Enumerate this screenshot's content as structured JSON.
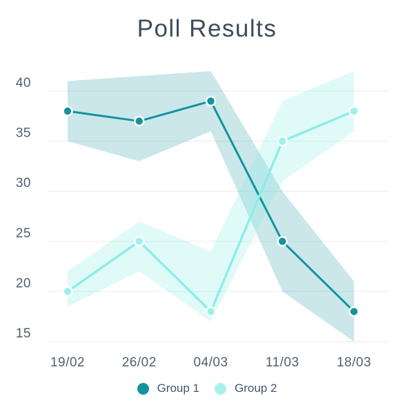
{
  "title": "Poll Results",
  "chart_data": {
    "type": "line",
    "title": "Poll Results",
    "categories": [
      "19/02",
      "26/02",
      "04/03",
      "11/03",
      "18/03"
    ],
    "series": [
      {
        "name": "Group 1",
        "values": [
          38,
          37,
          39,
          25,
          18
        ],
        "band_upper": [
          41,
          41.5,
          42,
          30,
          21
        ],
        "band_lower": [
          35,
          33,
          36,
          20,
          15
        ],
        "line_color": "#12939e",
        "marker_color": "#12939e",
        "band_color": "rgba(18,147,158,0.22)",
        "legend_color": "#12939e"
      },
      {
        "name": "Group 2",
        "values": [
          20,
          25,
          18,
          35,
          38
        ],
        "band_upper": [
          22,
          27,
          24,
          39,
          42
        ],
        "band_lower": [
          18.5,
          22,
          17,
          31,
          36
        ],
        "line_color": "#8deee7",
        "marker_color": "#9ff0ea",
        "band_color": "rgba(143,238,231,0.28)",
        "legend_color": "#a8f2ed"
      }
    ],
    "yticks": [
      15,
      20,
      25,
      30,
      35,
      40
    ],
    "ylim": [
      15,
      42
    ],
    "grid": true,
    "legend_position": "bottom"
  },
  "colors": {
    "background": "#ffffff",
    "title": "#3e4c5c",
    "tick_label": "#4e5f6e",
    "gridline": "#f0f1f1",
    "legend_text": "#45576a",
    "marker_ring": "#ffffff"
  }
}
